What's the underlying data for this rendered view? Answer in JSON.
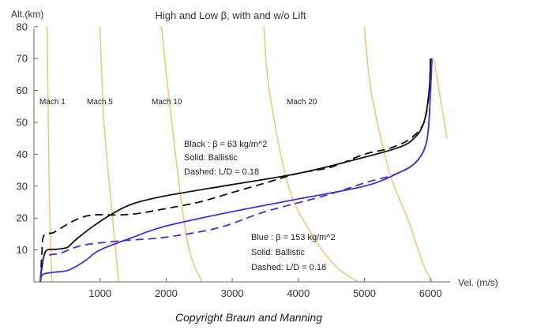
{
  "chart_data": {
    "type": "line",
    "title": "High and Low β, with and w/o Lift",
    "xlabel": "Vel. (m/s)",
    "ylabel": "Alt.(km)",
    "xlim": [
      0,
      6200
    ],
    "ylim": [
      0,
      80
    ],
    "xticks": [
      1000,
      2000,
      3000,
      4000,
      5000,
      6000
    ],
    "yticks": [
      10,
      20,
      30,
      40,
      50,
      60,
      70,
      80
    ],
    "mach_labels": [
      "Mach 1",
      "Mach 5",
      "Mach 10",
      "Mach 20"
    ],
    "mach_lines": [
      {
        "points": [
          [
            200,
            80
          ],
          [
            230,
            30
          ],
          [
            270,
            0
          ]
        ]
      },
      {
        "points": [
          [
            1000,
            80
          ],
          [
            1060,
            50
          ],
          [
            1190,
            20
          ],
          [
            1280,
            0
          ]
        ]
      },
      {
        "points": [
          [
            1930,
            80
          ],
          [
            2030,
            60
          ],
          [
            2200,
            30
          ],
          [
            2350,
            10
          ],
          [
            2540,
            0
          ]
        ]
      },
      {
        "points": [
          [
            3480,
            80
          ],
          [
            3560,
            60
          ],
          [
            3850,
            30
          ],
          [
            4200,
            15
          ],
          [
            4560,
            5
          ],
          [
            4900,
            0
          ]
        ]
      },
      {
        "points": [
          [
            5000,
            80
          ],
          [
            5100,
            60
          ],
          [
            5370,
            35
          ],
          [
            5650,
            20
          ],
          [
            5900,
            5
          ],
          [
            6030,
            0
          ]
        ]
      },
      {
        "points": [
          [
            6050,
            70
          ],
          [
            6250,
            45
          ]
        ]
      }
    ],
    "annotations": {
      "black": {
        "title": "Black : β = 63 kg/m^2",
        "solid": "Solid: Ballistic",
        "dashed": "Dashed: L/D = 0.18"
      },
      "blue": {
        "title": "Blue : β = 153 kg/m^2",
        "solid": "Solid: Ballistic",
        "dashed": "Dashed: L/D = 0.18"
      }
    },
    "series": [
      {
        "name": "Black solid (Ballistic, β = 63)",
        "color": "#111111",
        "dash": false,
        "points": [
          [
            6000,
            70
          ],
          [
            5980,
            60
          ],
          [
            5900,
            50
          ],
          [
            5750,
            45
          ],
          [
            5500,
            42
          ],
          [
            4800,
            38
          ],
          [
            4000,
            34
          ],
          [
            3000,
            30.5
          ],
          [
            2000,
            27
          ],
          [
            1500,
            24.5
          ],
          [
            1200,
            21.5
          ],
          [
            900,
            17.5
          ],
          [
            650,
            13.5
          ],
          [
            520,
            11
          ],
          [
            450,
            10.5
          ],
          [
            330,
            10.2
          ],
          [
            200,
            10
          ],
          [
            150,
            8
          ],
          [
            110,
            3
          ],
          [
            95,
            0
          ]
        ]
      },
      {
        "name": "Black dashed (L/D = 0.18, β = 63)",
        "color": "#111111",
        "dash": true,
        "points": [
          [
            6000,
            70
          ],
          [
            5980,
            60
          ],
          [
            5900,
            50
          ],
          [
            5700,
            45
          ],
          [
            5400,
            42
          ],
          [
            5000,
            40
          ],
          [
            4500,
            36
          ],
          [
            4000,
            34
          ],
          [
            3500,
            31
          ],
          [
            3000,
            28
          ],
          [
            2500,
            25
          ],
          [
            2000,
            23
          ],
          [
            1600,
            21.5
          ],
          [
            1300,
            21
          ],
          [
            900,
            21
          ],
          [
            700,
            20
          ],
          [
            500,
            18
          ],
          [
            300,
            15.5
          ],
          [
            150,
            14.5
          ],
          [
            120,
            9
          ],
          [
            100,
            0
          ]
        ]
      },
      {
        "name": "Blue solid (Ballistic, β = 153)",
        "color": "#4433cc",
        "dash": false,
        "points": [
          [
            6020,
            70
          ],
          [
            6000,
            60
          ],
          [
            5950,
            45
          ],
          [
            5800,
            38
          ],
          [
            5500,
            34
          ],
          [
            5000,
            30
          ],
          [
            4000,
            26
          ],
          [
            3000,
            22
          ],
          [
            2000,
            17.5
          ],
          [
            1500,
            14
          ],
          [
            1000,
            10
          ],
          [
            800,
            7
          ],
          [
            650,
            5
          ],
          [
            500,
            3.5
          ],
          [
            300,
            3
          ],
          [
            150,
            2.5
          ],
          [
            110,
            1.5
          ],
          [
            100,
            0
          ]
        ]
      },
      {
        "name": "Blue dashed (L/D = 0.18, β = 153)",
        "color": "#4433cc",
        "dash": true,
        "points": [
          [
            6020,
            70
          ],
          [
            6000,
            60
          ],
          [
            5950,
            45
          ],
          [
            5800,
            38
          ],
          [
            5500,
            34
          ],
          [
            5000,
            31
          ],
          [
            4400,
            27
          ],
          [
            3500,
            22
          ],
          [
            2800,
            17
          ],
          [
            2000,
            14
          ],
          [
            1400,
            13
          ],
          [
            900,
            12
          ],
          [
            650,
            11
          ],
          [
            400,
            9
          ],
          [
            250,
            8.5
          ],
          [
            150,
            8
          ],
          [
            110,
            4
          ],
          [
            100,
            0
          ]
        ]
      }
    ]
  },
  "caption": "Copyright Braun and Manning",
  "colors": {
    "mach_line": "#f2c879",
    "axis": "#666666"
  }
}
